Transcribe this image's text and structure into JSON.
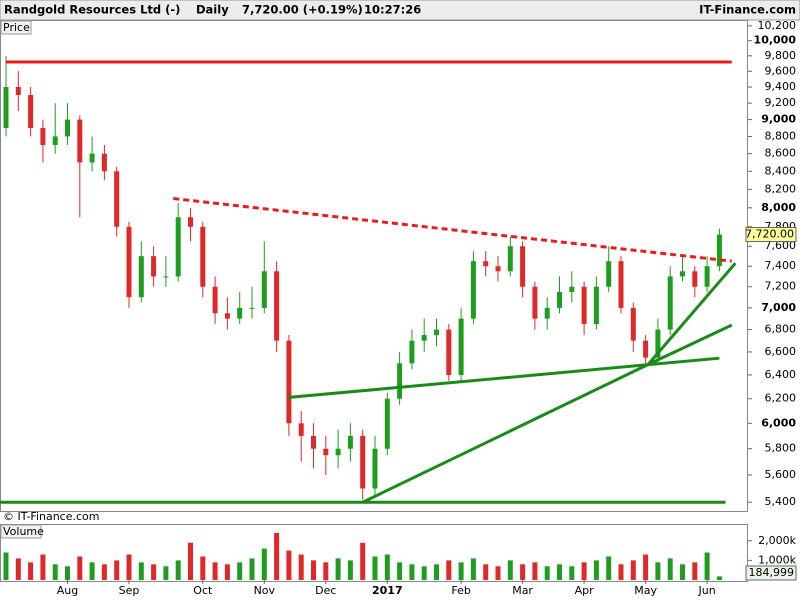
{
  "header": {
    "title": "Randgold Resources Ltd (-)",
    "period": "Daily",
    "quote": "7,720.00 (+0.19%)",
    "time": "10:27:26",
    "source": "IT-Finance.com"
  },
  "chart_data": {
    "type": "candlestick",
    "price_label": "Price",
    "copyright": "© IT-Finance.com",
    "volume_label": "Volume",
    "log_scale": true,
    "up_color": "#1e9e1e",
    "down_color": "#e02828",
    "categories": [
      null,
      null,
      null,
      null,
      null,
      "Aug",
      null,
      null,
      null,
      null,
      "Sep",
      null,
      null,
      null,
      null,
      null,
      "Oct",
      null,
      null,
      null,
      null,
      "Nov",
      null,
      null,
      null,
      null,
      "Dec",
      null,
      null,
      null,
      null,
      "2017",
      null,
      null,
      null,
      null,
      null,
      "Feb",
      null,
      null,
      null,
      null,
      "Mar",
      null,
      null,
      null,
      null,
      "Apr",
      null,
      null,
      null,
      null,
      "May",
      null,
      null,
      null,
      null,
      "Jun",
      null
    ],
    "open": [
      8900,
      9400,
      9300,
      8900,
      8700,
      8800,
      9000,
      8500,
      8600,
      8400,
      7800,
      7100,
      7500,
      7300,
      7300,
      7900,
      7800,
      7200,
      6950,
      6900,
      7000,
      7000,
      7350,
      6700,
      6000,
      5900,
      5800,
      5750,
      5800,
      5900,
      5500,
      5800,
      6200,
      6500,
      6700,
      6750,
      6800,
      6400,
      6900,
      7450,
      7400,
      7350,
      7600,
      7200,
      6900,
      7000,
      7150,
      7200,
      6850,
      7200,
      7450,
      7000,
      6700,
      6550,
      6800,
      7300,
      7350,
      7200,
      7400
    ],
    "high": [
      9800,
      9600,
      9400,
      9000,
      9200,
      9200,
      9050,
      8800,
      8700,
      8450,
      7850,
      7650,
      7600,
      7500,
      8050,
      8000,
      7850,
      7300,
      7100,
      7150,
      7200,
      7650,
      7450,
      6750,
      6100,
      6000,
      5900,
      5950,
      6000,
      5950,
      5900,
      6250,
      6600,
      6800,
      6900,
      6900,
      6850,
      7000,
      7550,
      7550,
      7500,
      7700,
      7650,
      7250,
      7100,
      7300,
      7350,
      7250,
      7300,
      7600,
      7500,
      7050,
      6750,
      6900,
      7400,
      7500,
      7400,
      7500,
      7780
    ],
    "low": [
      8800,
      9100,
      8800,
      8500,
      8600,
      8700,
      7900,
      8400,
      8300,
      7700,
      7000,
      7050,
      7200,
      7200,
      7250,
      7650,
      7100,
      6850,
      6800,
      6850,
      6900,
      6950,
      6600,
      5900,
      5700,
      5650,
      5600,
      5650,
      5700,
      5420,
      5450,
      5750,
      6150,
      6450,
      6600,
      6650,
      6350,
      6350,
      6850,
      7300,
      7250,
      7300,
      7100,
      6800,
      6800,
      6950,
      7050,
      6750,
      6800,
      7150,
      6950,
      6600,
      6500,
      6500,
      6750,
      7250,
      7100,
      7150,
      7350
    ],
    "close": [
      9400,
      9300,
      8900,
      8700,
      8800,
      9000,
      8500,
      8600,
      8400,
      7800,
      7100,
      7500,
      7300,
      7300,
      7900,
      7800,
      7200,
      6950,
      6900,
      7000,
      7000,
      7350,
      6700,
      6000,
      5900,
      5800,
      5750,
      5800,
      5900,
      5500,
      5800,
      6200,
      6500,
      6700,
      6750,
      6800,
      6400,
      6900,
      7450,
      7400,
      7350,
      7600,
      7200,
      6900,
      7000,
      7150,
      7200,
      6850,
      7200,
      7450,
      7000,
      6700,
      6550,
      6800,
      7300,
      7350,
      7200,
      7400,
      7720
    ],
    "last_label": "7,720.00",
    "volume": [
      1400000,
      1100000,
      900000,
      1300000,
      800000,
      700000,
      1200000,
      900000,
      800000,
      1000000,
      1300000,
      900000,
      800000,
      700000,
      1000000,
      1900000,
      1200000,
      900000,
      800000,
      900000,
      1100000,
      1600000,
      2400000,
      1500000,
      1300000,
      1000000,
      900000,
      1100000,
      1000000,
      1900000,
      1200000,
      1300000,
      900000,
      800000,
      700000,
      800000,
      1000000,
      900000,
      1100000,
      800000,
      700000,
      1000000,
      800000,
      900000,
      700000,
      800000,
      700000,
      900000,
      1000000,
      1200000,
      800000,
      1000000,
      1300000,
      900000,
      1100000,
      800000,
      900000,
      1400000,
      184999
    ],
    "last_volume_label": "184,999",
    "ylim": [
      5330,
      10280
    ],
    "yticks": [
      {
        "value": 10200,
        "label": "10,200"
      },
      {
        "value": 10000,
        "label": "10,000"
      },
      {
        "value": 9800,
        "label": "9,800"
      },
      {
        "value": 9600,
        "label": "9,600"
      },
      {
        "value": 9400,
        "label": "9,400"
      },
      {
        "value": 9200,
        "label": "9,200"
      },
      {
        "value": 9000,
        "label": "9,000"
      },
      {
        "value": 8800,
        "label": "8,800"
      },
      {
        "value": 8600,
        "label": "8,600"
      },
      {
        "value": 8400,
        "label": "8,400"
      },
      {
        "value": 8200,
        "label": "8,200"
      },
      {
        "value": 8000,
        "label": "8,000"
      },
      {
        "value": 7800,
        "label": "7,800"
      },
      {
        "value": 7600,
        "label": "7,600"
      },
      {
        "value": 7400,
        "label": "7,400"
      },
      {
        "value": 7200,
        "label": "7,200"
      },
      {
        "value": 7000,
        "label": "7,000"
      },
      {
        "value": 6800,
        "label": "6,800"
      },
      {
        "value": 6600,
        "label": "6,600"
      },
      {
        "value": 6400,
        "label": "6,400"
      },
      {
        "value": 6200,
        "label": "6,200"
      },
      {
        "value": 6000,
        "label": "6,000"
      },
      {
        "value": 5800,
        "label": "5,800"
      },
      {
        "value": 5600,
        "label": "5,600"
      },
      {
        "value": 5400,
        "label": "5,400"
      }
    ],
    "vylim": [
      0,
      2600000
    ],
    "vyticks": [
      {
        "value": 1000000,
        "label": "1,000k"
      },
      {
        "value": 2000000,
        "label": "2,000k"
      }
    ],
    "trendlines": [
      {
        "color": "#e81c1c",
        "dashed": false,
        "x": [
          0,
          59
        ],
        "y": [
          9720,
          9720
        ]
      },
      {
        "color": "#e81c1c",
        "dashed": true,
        "x": [
          13.6,
          59
        ],
        "y": [
          8100,
          7450
        ]
      },
      {
        "color": "#1a8a1a",
        "dashed": false,
        "x": [
          -0.5,
          58.5
        ],
        "y": [
          5400,
          5400
        ]
      },
      {
        "color": "#1a8a1a",
        "dashed": false,
        "x": [
          22.9,
          58
        ],
        "y": [
          6210,
          6545
        ]
      },
      {
        "color": "#1a8a1a",
        "dashed": false,
        "x": [
          29,
          52.2
        ],
        "y": [
          5400,
          6490
        ]
      },
      {
        "color": "#1a8a1a",
        "dashed": false,
        "x": [
          52.2,
          59.3
        ],
        "y": [
          6490,
          7430
        ]
      },
      {
        "color": "#1a8a1a",
        "dashed": false,
        "x": [
          52.2,
          59
        ],
        "y": [
          6490,
          6840
        ]
      }
    ]
  }
}
